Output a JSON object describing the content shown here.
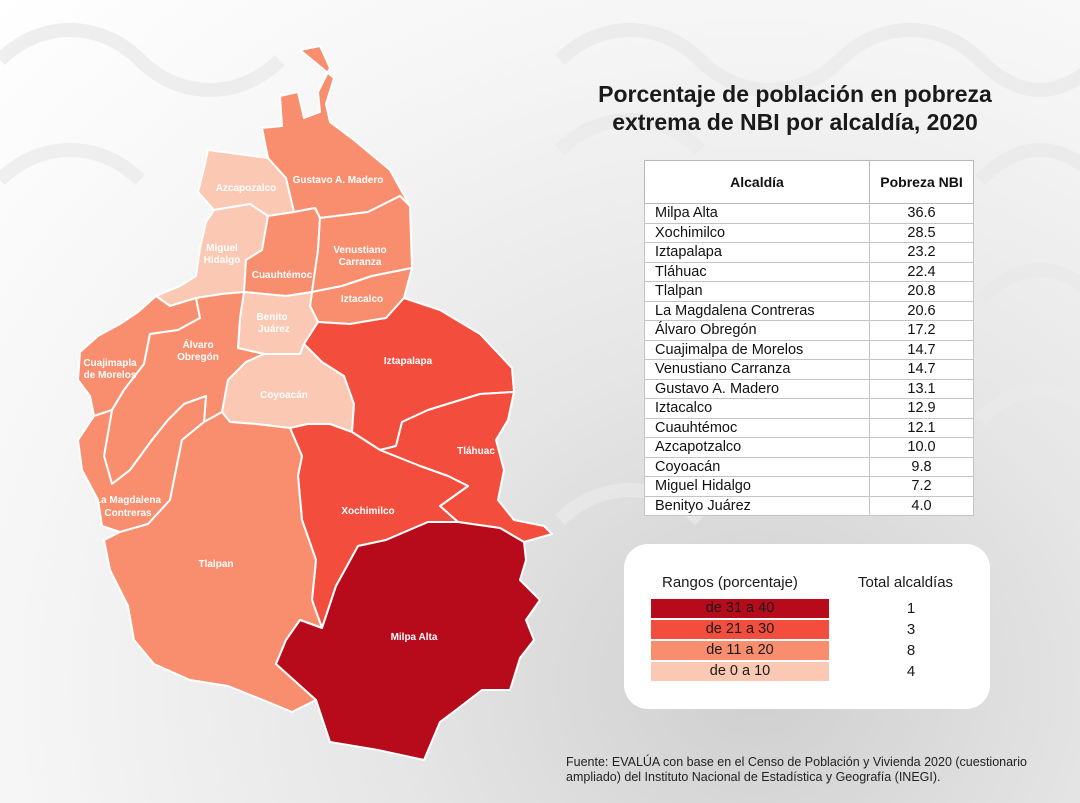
{
  "title": {
    "line1": "Porcentaje de población en pobreza",
    "line2": "extrema de NBI por alcaldía, 2020"
  },
  "table": {
    "headers": [
      "Alcaldía",
      "Pobreza NBI"
    ],
    "rows": [
      {
        "name": "Milpa Alta",
        "value": "36.6"
      },
      {
        "name": "Xochimilco",
        "value": "28.5"
      },
      {
        "name": "Iztapalapa",
        "value": "23.2"
      },
      {
        "name": "Tláhuac",
        "value": "22.4"
      },
      {
        "name": "Tlalpan",
        "value": "20.8"
      },
      {
        "name": "La Magdalena Contreras",
        "value": "20.6"
      },
      {
        "name": "Álvaro Obregón",
        "value": "17.2"
      },
      {
        "name": "Cuajimalpa de Morelos",
        "value": "14.7"
      },
      {
        "name": "Venustiano Carranza",
        "value": "14.7"
      },
      {
        "name": "Gustavo A. Madero",
        "value": "13.1"
      },
      {
        "name": "Iztacalco",
        "value": "12.9"
      },
      {
        "name": "Cuauhtémoc",
        "value": "12.1"
      },
      {
        "name": "Azcapotzalco",
        "value": "10.0"
      },
      {
        "name": "Coyoacán",
        "value": "9.8"
      },
      {
        "name": "Miguel Hidalgo",
        "value": "7.2"
      },
      {
        "name": "Benityo Juárez",
        "value": "4.0"
      }
    ]
  },
  "legend": {
    "range_header": "Rangos (porcentaje)",
    "count_header": "Total alcaldías",
    "ranges": [
      {
        "label": "de 31 a 40",
        "count": "1",
        "color": "#b70b1c"
      },
      {
        "label": "de 21 a 30",
        "count": "3",
        "color": "#f24d3d"
      },
      {
        "label": "de 11 a 20",
        "count": "8",
        "color": "#f98e6f"
      },
      {
        "label": "de 0 a 10",
        "count": "4",
        "color": "#fbc9b3"
      }
    ]
  },
  "map": {
    "labels": {
      "azcapotzalco": "Azcapozalco",
      "gustavo_madero": "Gustavo A. Madero",
      "miguel_hidalgo_1": "Miguel",
      "miguel_hidalgo_2": "Hidalgo",
      "cuauhtemoc": "Cuauhtémoc",
      "venustiano_1": "Venustiano",
      "venustiano_2": "Carranza",
      "iztacalco": "Iztacalco",
      "benito_1": "Benito",
      "benito_2": "Juárez",
      "alvaro_1": "Álvaro",
      "alvaro_2": "Obregón",
      "cuajimalpa_1": "Cuajimapla",
      "cuajimalpa_2": "de Morelos",
      "iztapalapa": "Iztapalapa",
      "coyoacan": "Coyoacán",
      "tlahuac": "Tláhuac",
      "magdalena_1": "La Magdalena",
      "magdalena_2": "Contreras",
      "xochimilco": "Xochimilco",
      "tlalpan": "Tlalpan",
      "milpa_alta": "Milpa Alta"
    }
  },
  "source": "Fuente: EVALÚA con base en el Censo de  Población y Vivienda 2020 (cuestionario ampliado) del Instituto Nacional de Estadística y Geografía (INEGI)."
}
